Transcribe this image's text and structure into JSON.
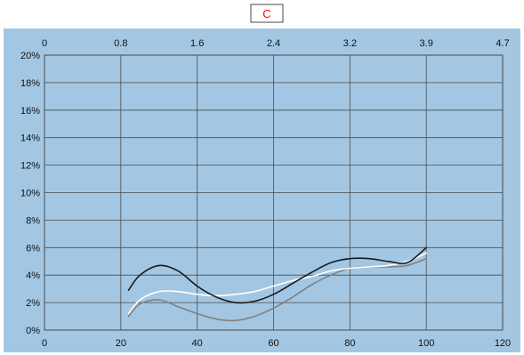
{
  "chart_data": {
    "type": "line",
    "title": "C",
    "xlabel": "",
    "ylabel": "",
    "x_bottom": {
      "lim": [
        0,
        120
      ],
      "ticks": [
        0,
        20,
        40,
        60,
        80,
        100,
        120
      ],
      "tick_labels": [
        "0",
        "20",
        "40",
        "60",
        "80",
        "100",
        "120"
      ]
    },
    "x_top": {
      "tick_labels": [
        "0",
        "0.8",
        "1.6",
        "2.4",
        "3.2",
        "3.9",
        "4.7"
      ]
    },
    "y": {
      "lim": [
        0,
        20
      ],
      "ticks": [
        0,
        2,
        4,
        6,
        8,
        10,
        12,
        14,
        16,
        18,
        20
      ],
      "tick_labels": [
        "0%",
        "2%",
        "4%",
        "6%",
        "8%",
        "10%",
        "12%",
        "14%",
        "16%",
        "18%",
        "20%"
      ]
    },
    "grid": true,
    "series": [
      {
        "color": "#1a1a1a",
        "points": [
          [
            22,
            2.9
          ],
          [
            25,
            4.0
          ],
          [
            30,
            4.7
          ],
          [
            35,
            4.3
          ],
          [
            40,
            3.2
          ],
          [
            45,
            2.4
          ],
          [
            50,
            2.0
          ],
          [
            55,
            2.1
          ],
          [
            60,
            2.6
          ],
          [
            65,
            3.4
          ],
          [
            70,
            4.2
          ],
          [
            75,
            4.9
          ],
          [
            80,
            5.2
          ],
          [
            85,
            5.2
          ],
          [
            90,
            5.0
          ],
          [
            95,
            4.9
          ],
          [
            100,
            6.0
          ]
        ]
      },
      {
        "color": "#ffffff",
        "points": [
          [
            22,
            1.2
          ],
          [
            25,
            2.2
          ],
          [
            30,
            2.8
          ],
          [
            35,
            2.8
          ],
          [
            40,
            2.6
          ],
          [
            45,
            2.5
          ],
          [
            50,
            2.6
          ],
          [
            55,
            2.8
          ],
          [
            60,
            3.2
          ],
          [
            65,
            3.6
          ],
          [
            70,
            3.9
          ],
          [
            75,
            4.3
          ],
          [
            80,
            4.5
          ],
          [
            85,
            4.6
          ],
          [
            90,
            4.7
          ],
          [
            95,
            5.0
          ],
          [
            100,
            5.6
          ]
        ]
      },
      {
        "color": "#808080",
        "points": [
          [
            22,
            1.0
          ],
          [
            25,
            1.9
          ],
          [
            30,
            2.2
          ],
          [
            35,
            1.7
          ],
          [
            40,
            1.2
          ],
          [
            45,
            0.8
          ],
          [
            50,
            0.7
          ],
          [
            55,
            1.0
          ],
          [
            60,
            1.6
          ],
          [
            65,
            2.4
          ],
          [
            70,
            3.3
          ],
          [
            75,
            4.0
          ],
          [
            80,
            4.5
          ],
          [
            85,
            4.6
          ],
          [
            90,
            4.6
          ],
          [
            95,
            4.7
          ],
          [
            100,
            5.2
          ]
        ]
      }
    ],
    "colors": {
      "plot_background": "#a3c7e3",
      "grid": "#4a4a4a",
      "title_text": "#ff0000",
      "title_border": "#4a4a4a"
    }
  }
}
